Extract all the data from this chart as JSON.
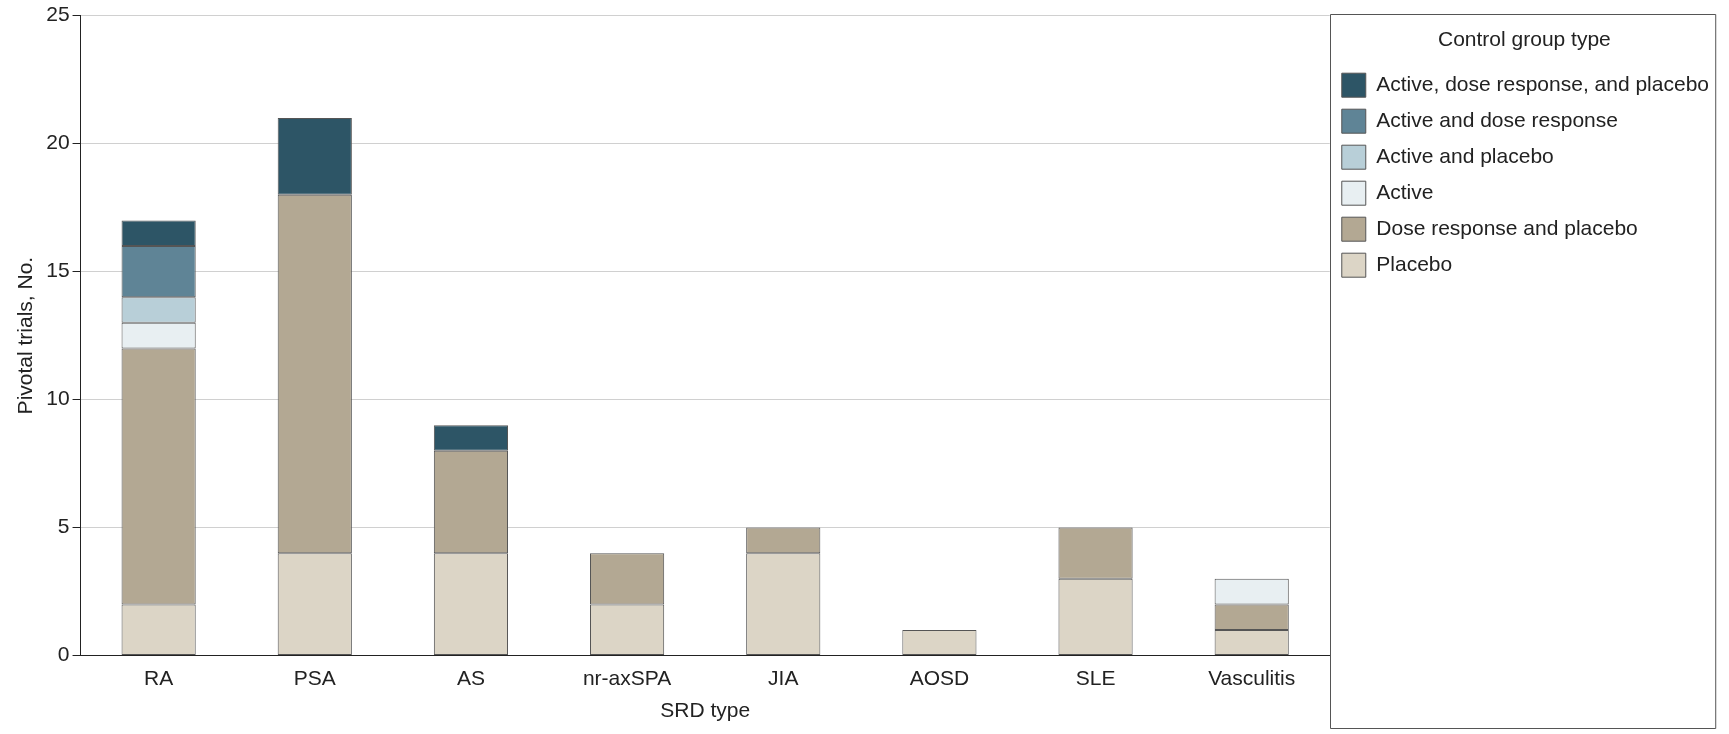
{
  "chart_data": {
    "type": "bar",
    "stacked": true,
    "xlabel": "SRD type",
    "ylabel": "Pivotal trials, No.",
    "legend_title": "Control group type",
    "categories": [
      "RA",
      "PSA",
      "AS",
      "nr-axSPA",
      "JIA",
      "AOSD",
      "SLE",
      "Vasculitis"
    ],
    "series": [
      {
        "name": "Placebo",
        "color": "#dcd5c6",
        "values": [
          2,
          4,
          4,
          2,
          4,
          1,
          3,
          1
        ]
      },
      {
        "name": "Dose response and placebo",
        "color": "#b3a893",
        "values": [
          10,
          14,
          4,
          2,
          1,
          0,
          2,
          1
        ]
      },
      {
        "name": "Active",
        "color": "#e8eff2",
        "values": [
          1,
          0,
          0,
          0,
          0,
          0,
          0,
          1
        ]
      },
      {
        "name": "Active and placebo",
        "color": "#b8cfd8",
        "values": [
          1,
          0,
          0,
          0,
          0,
          0,
          0,
          0
        ]
      },
      {
        "name": "Active and dose response",
        "color": "#5f8496",
        "values": [
          2,
          0,
          0,
          0,
          0,
          0,
          0,
          0
        ]
      },
      {
        "name": "Active, dose response, and placebo",
        "color": "#2d5566",
        "values": [
          1,
          3,
          1,
          0,
          0,
          0,
          0,
          0
        ]
      }
    ],
    "ylim": [
      0,
      25
    ],
    "yticks": [
      0,
      5,
      10,
      15,
      20,
      25
    ],
    "grid": "y",
    "legend": "top right"
  }
}
